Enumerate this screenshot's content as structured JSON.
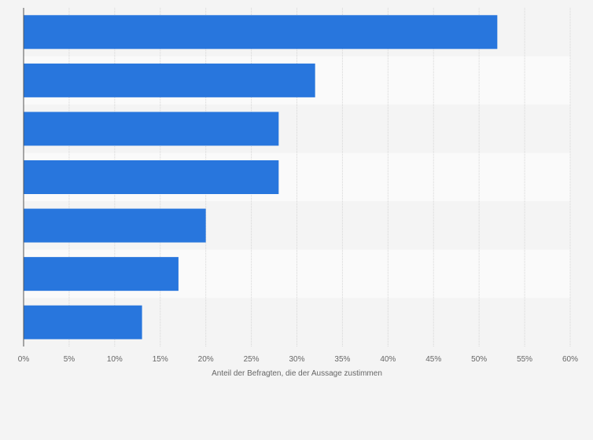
{
  "chart_data": {
    "type": "bar",
    "orientation": "horizontal",
    "categories": [
      "",
      "",
      "",
      "",
      "",
      "",
      ""
    ],
    "values": [
      52,
      32,
      28,
      28,
      20,
      17,
      13
    ],
    "xlabel": "Anteil der Befragten, die der Aussage zustimmen",
    "xlim": [
      0,
      60
    ],
    "x_ticks": [
      "0%",
      "5%",
      "10%",
      "15%",
      "20%",
      "25%",
      "30%",
      "35%",
      "40%",
      "45%",
      "50%",
      "55%",
      "60%"
    ],
    "grid": "vertical dashed",
    "bar_color": "#2876dd",
    "band_colors": [
      "#f4f4f4",
      "#fafafa"
    ]
  }
}
